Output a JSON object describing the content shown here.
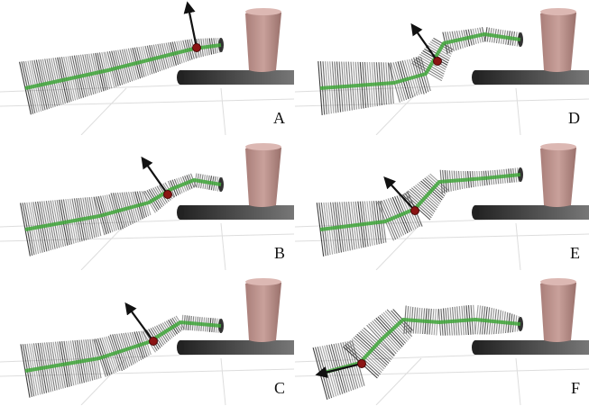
{
  "figure": {
    "panels": [
      {
        "label": "A"
      },
      {
        "label": "B"
      },
      {
        "label": "C"
      },
      {
        "label": "D"
      },
      {
        "label": "E"
      },
      {
        "label": "F"
      }
    ]
  },
  "colors": {
    "background": "#ffffff",
    "ring_dark": "#1a1a1a",
    "ring_light": "#e8e8e8",
    "centerline": "#3fa63a",
    "tip_marker": "#8b1414",
    "arrow": "#111111",
    "cup": "#c9a19b",
    "table_dark": "#222222",
    "table_light": "#777777",
    "grid": "#dddddd"
  },
  "icons": {
    "arrow": "arrow-icon",
    "tip_marker": "tip-marker-icon",
    "cup": "cup-icon"
  }
}
